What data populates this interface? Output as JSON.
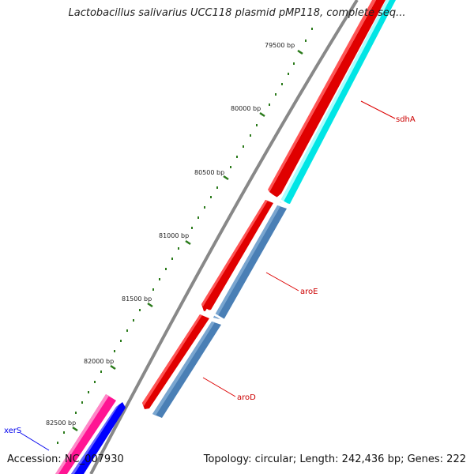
{
  "title": "Lactobacillus salivarius UCC118 plasmid pMP118, complete seq...",
  "accession": "Accession: NC_007930",
  "summary": "Topology: circular; Length: 242,436 bp; Genes: 222",
  "ticks": [
    "79500 bp",
    "80000 bp",
    "80500 bp",
    "81000 bp",
    "81500 bp",
    "82000 bp",
    "82500 bp"
  ],
  "genes": [
    {
      "name": "sdhA",
      "color": "#cc0000"
    },
    {
      "name": "aroE",
      "color": "#cc0000"
    },
    {
      "name": "aroD",
      "color": "#cc0000"
    },
    {
      "name": "xerS",
      "color": "#0000ee"
    }
  ],
  "colors": {
    "backbone": "#888888",
    "forward": "#ff0000",
    "reverse_cyan": "#00ffff",
    "reverse_steel": "#4a7fb5",
    "magenta": "#ff1493",
    "blue": "#0000ff",
    "tick": "#2a7a1a"
  }
}
